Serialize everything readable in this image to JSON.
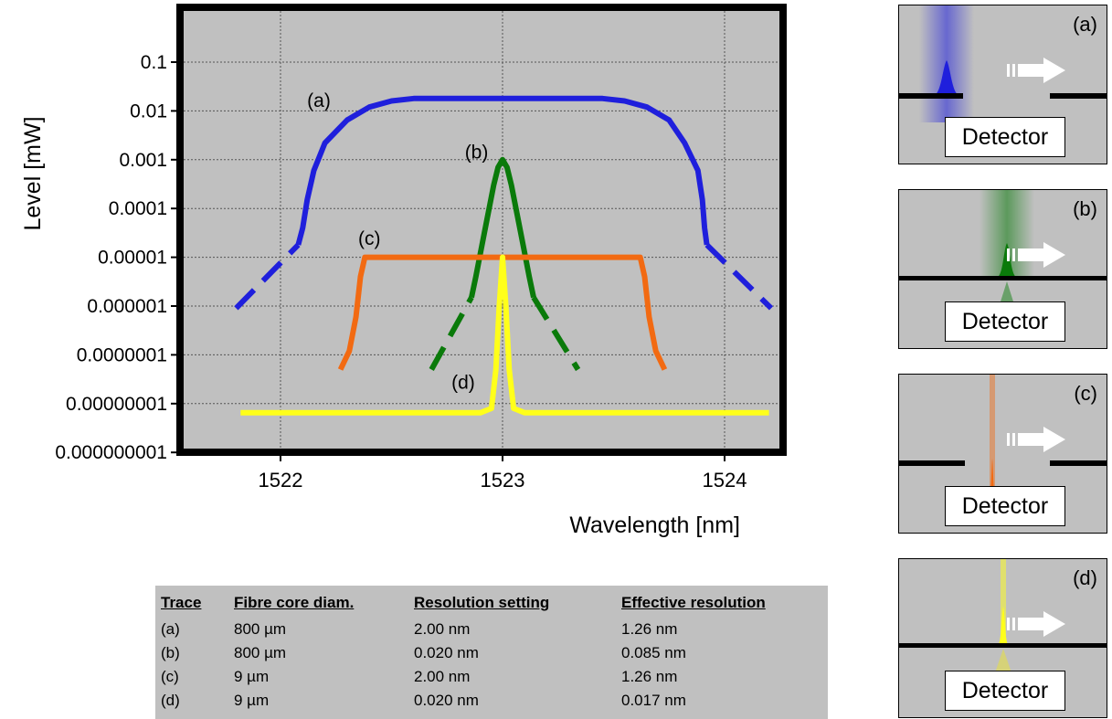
{
  "chart_data": {
    "type": "line",
    "title": "",
    "xlabel": "Wavelength [nm]",
    "ylabel": "Level [mW]",
    "xlim": [
      1521.55,
      1524.45
    ],
    "ylim": [
      1e-09,
      1
    ],
    "yscale": "log",
    "grid": true,
    "xticks": [
      {
        "v": 1522,
        "label": "1522"
      },
      {
        "v": 1523,
        "label": "1523"
      },
      {
        "v": 1524,
        "label": "1524"
      }
    ],
    "yticks": [
      {
        "v": 0.1,
        "label": "0.1"
      },
      {
        "v": 0.01,
        "label": "0.01"
      },
      {
        "v": 0.001,
        "label": "0.001"
      },
      {
        "v": 0.0001,
        "label": "0.0001"
      },
      {
        "v": 1e-05,
        "label": "0.00001"
      },
      {
        "v": 1e-06,
        "label": "0.000001"
      },
      {
        "v": 1e-07,
        "label": "0.0000001"
      },
      {
        "v": 1e-08,
        "label": "0.00000001"
      },
      {
        "v": 1e-09,
        "label": "0.000000001"
      }
    ],
    "series": [
      {
        "label": "(a)",
        "label_pos": [
          1522.12,
          0.012
        ],
        "color": "#1f1fdc",
        "segments": [
          {
            "dashed": false,
            "points": [
              [
                1522.08,
                1.8e-05
              ],
              [
                1522.1,
                4e-05
              ],
              [
                1522.12,
                0.00015
              ],
              [
                1522.15,
                0.0006
              ],
              [
                1522.2,
                0.0022
              ],
              [
                1522.3,
                0.0065
              ],
              [
                1522.4,
                0.012
              ],
              [
                1522.5,
                0.016
              ],
              [
                1522.6,
                0.018
              ],
              [
                1522.8,
                0.018
              ],
              [
                1523.2,
                0.018
              ],
              [
                1523.45,
                0.018
              ],
              [
                1523.55,
                0.016
              ],
              [
                1523.65,
                0.012
              ],
              [
                1523.75,
                0.0065
              ],
              [
                1523.82,
                0.0022
              ],
              [
                1523.88,
                0.0006
              ],
              [
                1523.9,
                0.00015
              ],
              [
                1523.91,
                4e-05
              ],
              [
                1523.92,
                1.8e-05
              ]
            ]
          },
          {
            "dashed": true,
            "points": [
              [
                1521.8,
                9e-07
              ],
              [
                1522.08,
                1.8e-05
              ]
            ]
          },
          {
            "dashed": true,
            "points": [
              [
                1523.92,
                1.8e-05
              ],
              [
                1524.21,
                9e-07
              ]
            ]
          }
        ]
      },
      {
        "label": "(b)",
        "label_pos": [
          1522.83,
          0.00105
        ],
        "color": "#0a7a0a",
        "segments": [
          {
            "dashed": false,
            "points": [
              [
                1522.86,
                1.5e-06
              ],
              [
                1522.88,
                4e-06
              ],
              [
                1522.9,
                1.2e-05
              ],
              [
                1522.93,
                6e-05
              ],
              [
                1522.96,
                0.0003
              ],
              [
                1522.98,
                0.0007
              ],
              [
                1523.0,
                0.001
              ],
              [
                1523.02,
                0.0007
              ],
              [
                1523.04,
                0.0003
              ],
              [
                1523.07,
                6e-05
              ],
              [
                1523.1,
                1.2e-05
              ],
              [
                1523.12,
                4e-06
              ],
              [
                1523.14,
                1.5e-06
              ]
            ]
          },
          {
            "dashed": true,
            "points": [
              [
                1522.68,
                5e-08
              ],
              [
                1522.86,
                1.5e-06
              ]
            ]
          },
          {
            "dashed": true,
            "points": [
              [
                1523.14,
                1.5e-06
              ],
              [
                1523.34,
                5e-08
              ]
            ]
          }
        ]
      },
      {
        "label": "(c)",
        "label_pos": [
          1522.35,
          1.8e-05
        ],
        "color": "#f26a12",
        "segments": [
          {
            "dashed": false,
            "points": [
              [
                1522.27,
                5e-08
              ],
              [
                1522.31,
                1.2e-07
              ],
              [
                1522.34,
                6e-07
              ],
              [
                1522.36,
                4e-06
              ],
              [
                1522.38,
                1e-05
              ],
              [
                1522.5,
                1e-05
              ],
              [
                1523.5,
                1e-05
              ],
              [
                1523.62,
                1e-05
              ],
              [
                1523.64,
                4e-06
              ],
              [
                1523.66,
                6e-07
              ],
              [
                1523.69,
                1.2e-07
              ],
              [
                1523.73,
                5e-08
              ]
            ]
          }
        ]
      },
      {
        "label": "(d)",
        "label_pos": [
          1522.77,
          2e-08
        ],
        "color": "#ffff1a",
        "segments": [
          {
            "dashed": false,
            "points": [
              [
                1521.82,
                6.5e-09
              ],
              [
                1522.9,
                6.5e-09
              ],
              [
                1522.95,
                8e-09
              ],
              [
                1522.97,
                5e-08
              ],
              [
                1522.985,
                1e-06
              ],
              [
                1523.0,
                1e-05
              ],
              [
                1523.015,
                1e-06
              ],
              [
                1523.03,
                5e-08
              ],
              [
                1523.05,
                8e-09
              ],
              [
                1523.1,
                6.5e-09
              ],
              [
                1524.2,
                6.5e-09
              ]
            ]
          }
        ]
      }
    ],
    "table": {
      "columns": [
        "Trace",
        "Fibre core diam.",
        "Resolution setting",
        "Effective resolution"
      ],
      "rows": [
        [
          "(a)",
          "800 µm",
          "2.00 nm",
          "1.26 nm"
        ],
        [
          "(b)",
          "800 µm",
          "0.020 nm",
          "0.085 nm"
        ],
        [
          "(c)",
          "9 µm",
          "2.00 nm",
          "1.26 nm"
        ],
        [
          "(d)",
          "9 µm",
          "0.020 nm",
          "0.017 nm"
        ]
      ]
    }
  },
  "panels": [
    {
      "label": "(a)",
      "detector": "Detector",
      "color": "#1f1fdc",
      "type": "wide-beam"
    },
    {
      "label": "(b)",
      "detector": "Detector",
      "color": "#0a7a0a",
      "type": "slit-narrow"
    },
    {
      "label": "(c)",
      "detector": "Detector",
      "color": "#f26a12",
      "type": "thin-wide-gap"
    },
    {
      "label": "(d)",
      "detector": "Detector",
      "color": "#ffff1a",
      "type": "thin-narrow"
    }
  ]
}
